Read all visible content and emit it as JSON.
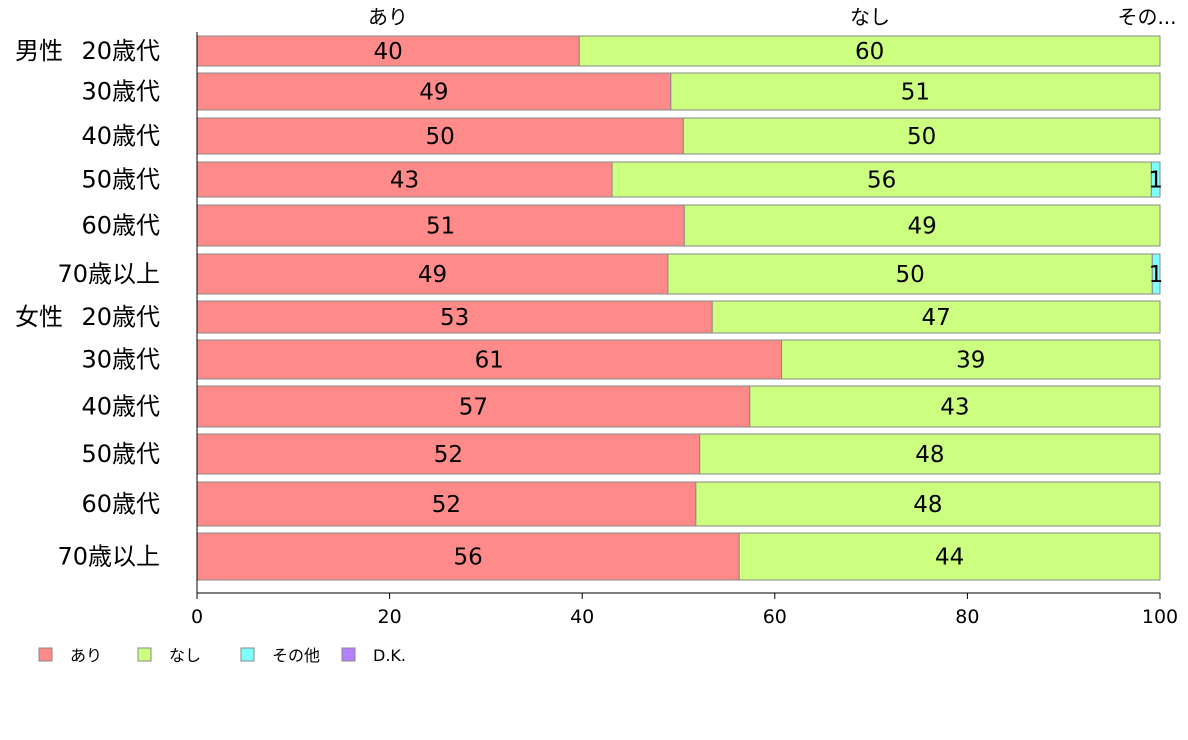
{
  "chart_data": {
    "type": "bar",
    "orientation": "horizontal",
    "stacked": true,
    "xlim": [
      0,
      100
    ],
    "xticks": [
      "0",
      "20",
      "40",
      "60",
      "80",
      "100"
    ],
    "top_labels": [
      "あり",
      "なし",
      "その..."
    ],
    "groups": [
      {
        "label": "男性",
        "rows": [
          0,
          1,
          2,
          3,
          4,
          5
        ]
      },
      {
        "label": "女性",
        "rows": [
          6,
          7,
          8,
          9,
          10,
          11
        ]
      }
    ],
    "categories": [
      "20歳代",
      "30歳代",
      "40歳代",
      "50歳代",
      "60歳代",
      "70歳以上",
      "20歳代",
      "30歳代",
      "40歳代",
      "50歳代",
      "60歳代",
      "70歳以上"
    ],
    "series": [
      {
        "name": "あり",
        "color": "#ff8a8a",
        "values": [
          39.7,
          49.2,
          50.5,
          43.1,
          50.6,
          48.9,
          53.5,
          60.7,
          57.4,
          52.2,
          51.8,
          56.3
        ]
      },
      {
        "name": "なし",
        "color": "#ccff80",
        "values": [
          60.3,
          50.8,
          49.5,
          56.0,
          49.4,
          50.3,
          46.5,
          39.3,
          42.6,
          47.8,
          48.2,
          43.7
        ]
      },
      {
        "name": "その他",
        "color": "#80ffff",
        "values": [
          0,
          0,
          0,
          0.9,
          0,
          0.8,
          0,
          0,
          0,
          0,
          0,
          0
        ]
      },
      {
        "name": "D.K.",
        "color": "#b380ff",
        "values": [
          0,
          0,
          0,
          0,
          0,
          0,
          0,
          0,
          0,
          0,
          0,
          0
        ]
      }
    ],
    "data_labels": [
      [
        "40",
        "60",
        ""
      ],
      [
        "49",
        "51",
        ""
      ],
      [
        "50",
        "50",
        ""
      ],
      [
        "43",
        "56",
        "1"
      ],
      [
        "51",
        "49",
        ""
      ],
      [
        "49",
        "50",
        "1"
      ],
      [
        "53",
        "47",
        ""
      ],
      [
        "61",
        "39",
        ""
      ],
      [
        "57",
        "43",
        ""
      ],
      [
        "52",
        "48",
        ""
      ],
      [
        "52",
        "48",
        ""
      ],
      [
        "56",
        "44",
        ""
      ]
    ],
    "legend": {
      "position": "bottom-left",
      "entries": [
        "あり",
        "なし",
        "その他",
        "D.K."
      ]
    },
    "grid": false
  }
}
